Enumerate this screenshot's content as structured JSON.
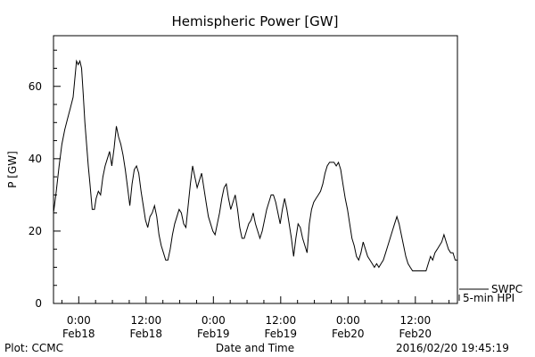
{
  "chart_data": {
    "type": "line",
    "title": "Hemispheric Power [GW]",
    "xlabel": "Date and Time",
    "ylabel": "P [GW]",
    "ylim": [
      0,
      74
    ],
    "xlim": [
      -4.5,
      67.5
    ],
    "x_unit": "hours since 2016/02/18 00:00",
    "yticks": [
      0,
      20,
      40,
      60
    ],
    "xticks": [
      {
        "x": 0,
        "label1": "0:00",
        "label2": "Feb18"
      },
      {
        "x": 12,
        "label1": "12:00",
        "label2": "Feb18"
      },
      {
        "x": 24,
        "label1": "0:00",
        "label2": "Feb19"
      },
      {
        "x": 36,
        "label1": "12:00",
        "label2": "Feb19"
      },
      {
        "x": 48,
        "label1": "0:00",
        "label2": "Feb20"
      },
      {
        "x": 60,
        "label1": "12:00",
        "label2": "Feb20"
      }
    ],
    "legend": {
      "placement": "right",
      "items": [
        "SWPC",
        "5-min HPI"
      ]
    },
    "footer_left": "Plot: CCMC",
    "footer_right": "2016/02/20 19:45:19",
    "series": [
      {
        "name": "SWPC",
        "color": "#000000",
        "points": [
          [
            -4.5,
            25
          ],
          [
            -4.0,
            31
          ],
          [
            -3.5,
            38
          ],
          [
            -3.0,
            44
          ],
          [
            -2.5,
            48
          ],
          [
            -2.0,
            51
          ],
          [
            -1.5,
            54
          ],
          [
            -1.0,
            57
          ],
          [
            -0.7,
            62
          ],
          [
            -0.4,
            67
          ],
          [
            -0.1,
            66
          ],
          [
            0.2,
            67
          ],
          [
            0.5,
            65
          ],
          [
            0.8,
            58
          ],
          [
            1.1,
            50
          ],
          [
            1.4,
            44
          ],
          [
            1.7,
            38
          ],
          [
            2.0,
            33
          ],
          [
            2.4,
            26
          ],
          [
            2.8,
            26
          ],
          [
            3.1,
            29
          ],
          [
            3.5,
            31
          ],
          [
            3.9,
            30
          ],
          [
            4.3,
            35
          ],
          [
            4.7,
            38
          ],
          [
            5.1,
            40
          ],
          [
            5.5,
            42
          ],
          [
            5.9,
            38
          ],
          [
            6.3,
            43
          ],
          [
            6.7,
            49
          ],
          [
            7.1,
            46
          ],
          [
            7.5,
            44
          ],
          [
            7.9,
            41
          ],
          [
            8.3,
            37
          ],
          [
            8.7,
            32
          ],
          [
            9.1,
            27
          ],
          [
            9.5,
            33
          ],
          [
            9.9,
            37
          ],
          [
            10.3,
            38
          ],
          [
            10.7,
            36
          ],
          [
            11.1,
            31
          ],
          [
            11.5,
            27
          ],
          [
            11.9,
            23
          ],
          [
            12.3,
            21
          ],
          [
            12.7,
            24
          ],
          [
            13.1,
            25
          ],
          [
            13.5,
            27
          ],
          [
            13.9,
            24
          ],
          [
            14.3,
            19
          ],
          [
            14.7,
            16
          ],
          [
            15.1,
            14
          ],
          [
            15.5,
            12
          ],
          [
            15.9,
            12
          ],
          [
            16.3,
            15
          ],
          [
            16.7,
            19
          ],
          [
            17.1,
            22
          ],
          [
            17.5,
            24
          ],
          [
            17.9,
            26
          ],
          [
            18.3,
            25
          ],
          [
            18.7,
            22
          ],
          [
            19.1,
            21
          ],
          [
            19.5,
            27
          ],
          [
            19.9,
            33
          ],
          [
            20.3,
            38
          ],
          [
            20.7,
            35
          ],
          [
            21.1,
            32
          ],
          [
            21.5,
            34
          ],
          [
            21.9,
            36
          ],
          [
            22.3,
            32
          ],
          [
            22.7,
            28
          ],
          [
            23.1,
            24
          ],
          [
            23.5,
            22
          ],
          [
            23.9,
            20
          ],
          [
            24.3,
            19
          ],
          [
            24.7,
            22
          ],
          [
            25.1,
            25
          ],
          [
            25.5,
            29
          ],
          [
            25.9,
            32
          ],
          [
            26.3,
            33
          ],
          [
            26.7,
            29
          ],
          [
            27.1,
            26
          ],
          [
            27.5,
            28
          ],
          [
            27.9,
            30
          ],
          [
            28.3,
            26
          ],
          [
            28.7,
            21
          ],
          [
            29.1,
            18
          ],
          [
            29.5,
            18
          ],
          [
            29.9,
            20
          ],
          [
            30.3,
            22
          ],
          [
            30.7,
            23
          ],
          [
            31.1,
            25
          ],
          [
            31.5,
            22
          ],
          [
            31.9,
            20
          ],
          [
            32.3,
            18
          ],
          [
            32.7,
            20
          ],
          [
            33.1,
            23
          ],
          [
            33.5,
            26
          ],
          [
            33.9,
            28
          ],
          [
            34.3,
            30
          ],
          [
            34.7,
            30
          ],
          [
            35.1,
            28
          ],
          [
            35.5,
            25
          ],
          [
            35.9,
            22
          ],
          [
            36.3,
            26
          ],
          [
            36.7,
            29
          ],
          [
            37.1,
            26
          ],
          [
            37.5,
            22
          ],
          [
            37.9,
            18
          ],
          [
            38.3,
            13
          ],
          [
            38.7,
            18
          ],
          [
            39.1,
            22
          ],
          [
            39.5,
            21
          ],
          [
            39.9,
            18
          ],
          [
            40.3,
            16
          ],
          [
            40.7,
            14
          ],
          [
            41.1,
            22
          ],
          [
            41.5,
            26
          ],
          [
            41.9,
            28
          ],
          [
            42.3,
            29
          ],
          [
            42.7,
            30
          ],
          [
            43.1,
            31
          ],
          [
            43.5,
            33
          ],
          [
            43.9,
            36
          ],
          [
            44.3,
            38
          ],
          [
            44.7,
            39
          ],
          [
            45.1,
            39
          ],
          [
            45.5,
            39
          ],
          [
            45.9,
            38
          ],
          [
            46.3,
            39
          ],
          [
            46.7,
            37
          ],
          [
            47.1,
            33
          ],
          [
            47.5,
            29
          ],
          [
            47.9,
            26
          ],
          [
            48.3,
            22
          ],
          [
            48.7,
            18
          ],
          [
            49.1,
            16
          ],
          [
            49.5,
            13
          ],
          [
            49.9,
            12
          ],
          [
            50.3,
            14
          ],
          [
            50.7,
            17
          ],
          [
            51.1,
            15
          ],
          [
            51.5,
            13
          ],
          [
            51.9,
            12
          ],
          [
            52.3,
            11
          ],
          [
            52.7,
            10
          ],
          [
            53.1,
            11
          ],
          [
            53.5,
            10
          ],
          [
            53.9,
            11
          ],
          [
            54.3,
            12
          ],
          [
            54.7,
            14
          ],
          [
            55.1,
            16
          ],
          [
            55.5,
            18
          ],
          [
            55.9,
            20
          ],
          [
            56.3,
            22
          ],
          [
            56.7,
            24
          ],
          [
            57.1,
            22
          ],
          [
            57.5,
            19
          ],
          [
            57.9,
            16
          ],
          [
            58.3,
            13
          ],
          [
            58.7,
            11
          ],
          [
            59.1,
            10
          ],
          [
            59.5,
            9
          ],
          [
            59.9,
            9
          ],
          [
            60.3,
            9
          ],
          [
            60.7,
            9
          ],
          [
            61.1,
            9
          ],
          [
            61.5,
            9
          ],
          [
            61.9,
            9
          ],
          [
            62.3,
            11
          ],
          [
            62.7,
            13
          ],
          [
            63.1,
            12
          ],
          [
            63.5,
            14
          ],
          [
            63.9,
            15
          ],
          [
            64.3,
            16
          ],
          [
            64.7,
            17
          ],
          [
            65.1,
            19
          ],
          [
            65.5,
            17
          ],
          [
            65.9,
            15
          ],
          [
            66.3,
            14
          ],
          [
            66.7,
            14
          ],
          [
            67.1,
            12
          ],
          [
            67.5,
            12
          ]
        ]
      },
      {
        "name": "5-min HPI",
        "color": "#000000",
        "points": []
      }
    ]
  }
}
